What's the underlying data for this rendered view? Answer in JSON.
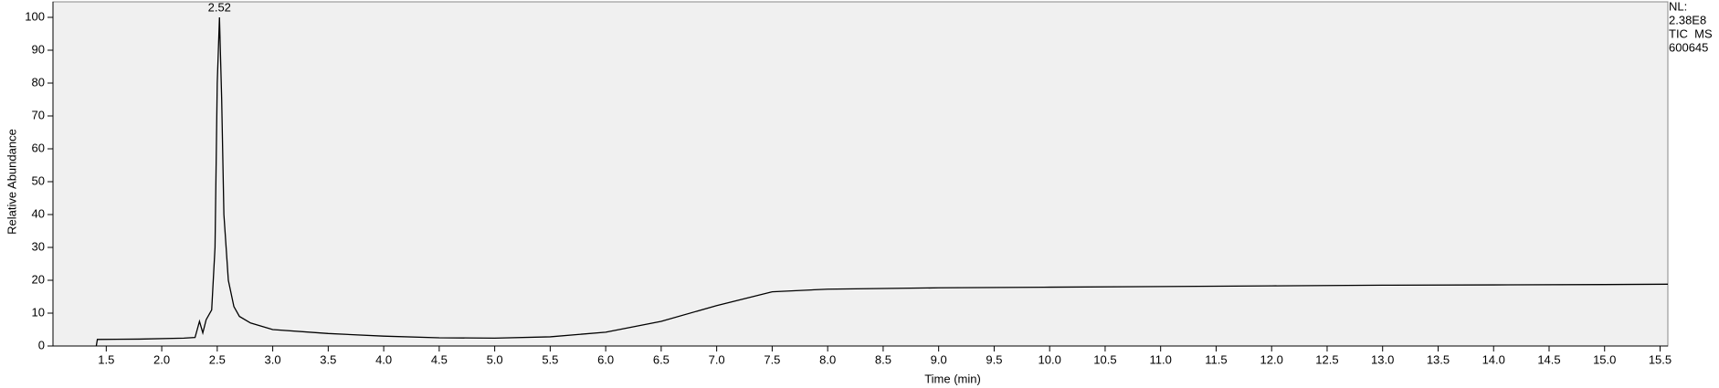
{
  "chart_data": {
    "type": "line",
    "xlabel": "Time (min)",
    "ylabel": "Relative Abundance",
    "annotations": [
      {
        "text": "2.52",
        "x": 2.52,
        "y": 100
      }
    ],
    "side_labels": [
      "NL:",
      "2.38E8",
      "TIC  MS",
      "600645"
    ],
    "xlim": [
      1.02,
      15.57
    ],
    "ylim": [
      0,
      100
    ],
    "xticks": [
      1.5,
      {
        "value": 2,
        "label": "2.0"
      },
      2.5,
      {
        "value": 3,
        "label": "3.0"
      },
      3.5,
      {
        "value": 4,
        "label": "4.0"
      },
      4.5,
      {
        "value": 5,
        "label": "5.0"
      },
      5.5,
      {
        "value": 6,
        "label": "6.0"
      },
      6.5,
      {
        "value": 7,
        "label": "7.0"
      },
      7.5,
      {
        "value": 8,
        "label": "8.0"
      },
      8.5,
      {
        "value": 9,
        "label": "9.0"
      },
      9.5,
      {
        "value": 10,
        "label": "10.0"
      },
      10.5,
      {
        "value": 11,
        "label": "11.0"
      },
      11.5,
      {
        "value": 12,
        "label": "12.0"
      },
      12.5,
      {
        "value": 13,
        "label": "13.0"
      },
      13.5,
      {
        "value": 14,
        "label": "14.0"
      },
      14.5,
      {
        "value": 15,
        "label": "15.0"
      },
      15.5
    ],
    "yticks": [
      0,
      10,
      20,
      30,
      40,
      50,
      60,
      70,
      80,
      90,
      100
    ],
    "color": "#000000",
    "x": [
      1.41,
      1.42,
      1.8,
      2.2,
      2.3,
      2.34,
      2.37,
      2.4,
      2.45,
      2.48,
      2.5,
      2.52,
      2.54,
      2.56,
      2.6,
      2.65,
      2.7,
      2.8,
      3.0,
      3.5,
      4.0,
      4.5,
      5.0,
      5.5,
      6.0,
      6.5,
      7.0,
      7.5,
      8.0,
      9.0,
      10.0,
      11.0,
      12.0,
      13.0,
      14.0,
      15.0,
      15.57
    ],
    "values": [
      0,
      2,
      2.1,
      2.4,
      2.6,
      7.5,
      4,
      8,
      11,
      30,
      80,
      100,
      75,
      40,
      20,
      12,
      9,
      7,
      5,
      3.8,
      3,
      2.5,
      2.4,
      2.8,
      4.2,
      7.5,
      12.3,
      16.5,
      17.3,
      17.7,
      17.9,
      18.1,
      18.3,
      18.5,
      18.6,
      18.7,
      18.8
    ]
  }
}
